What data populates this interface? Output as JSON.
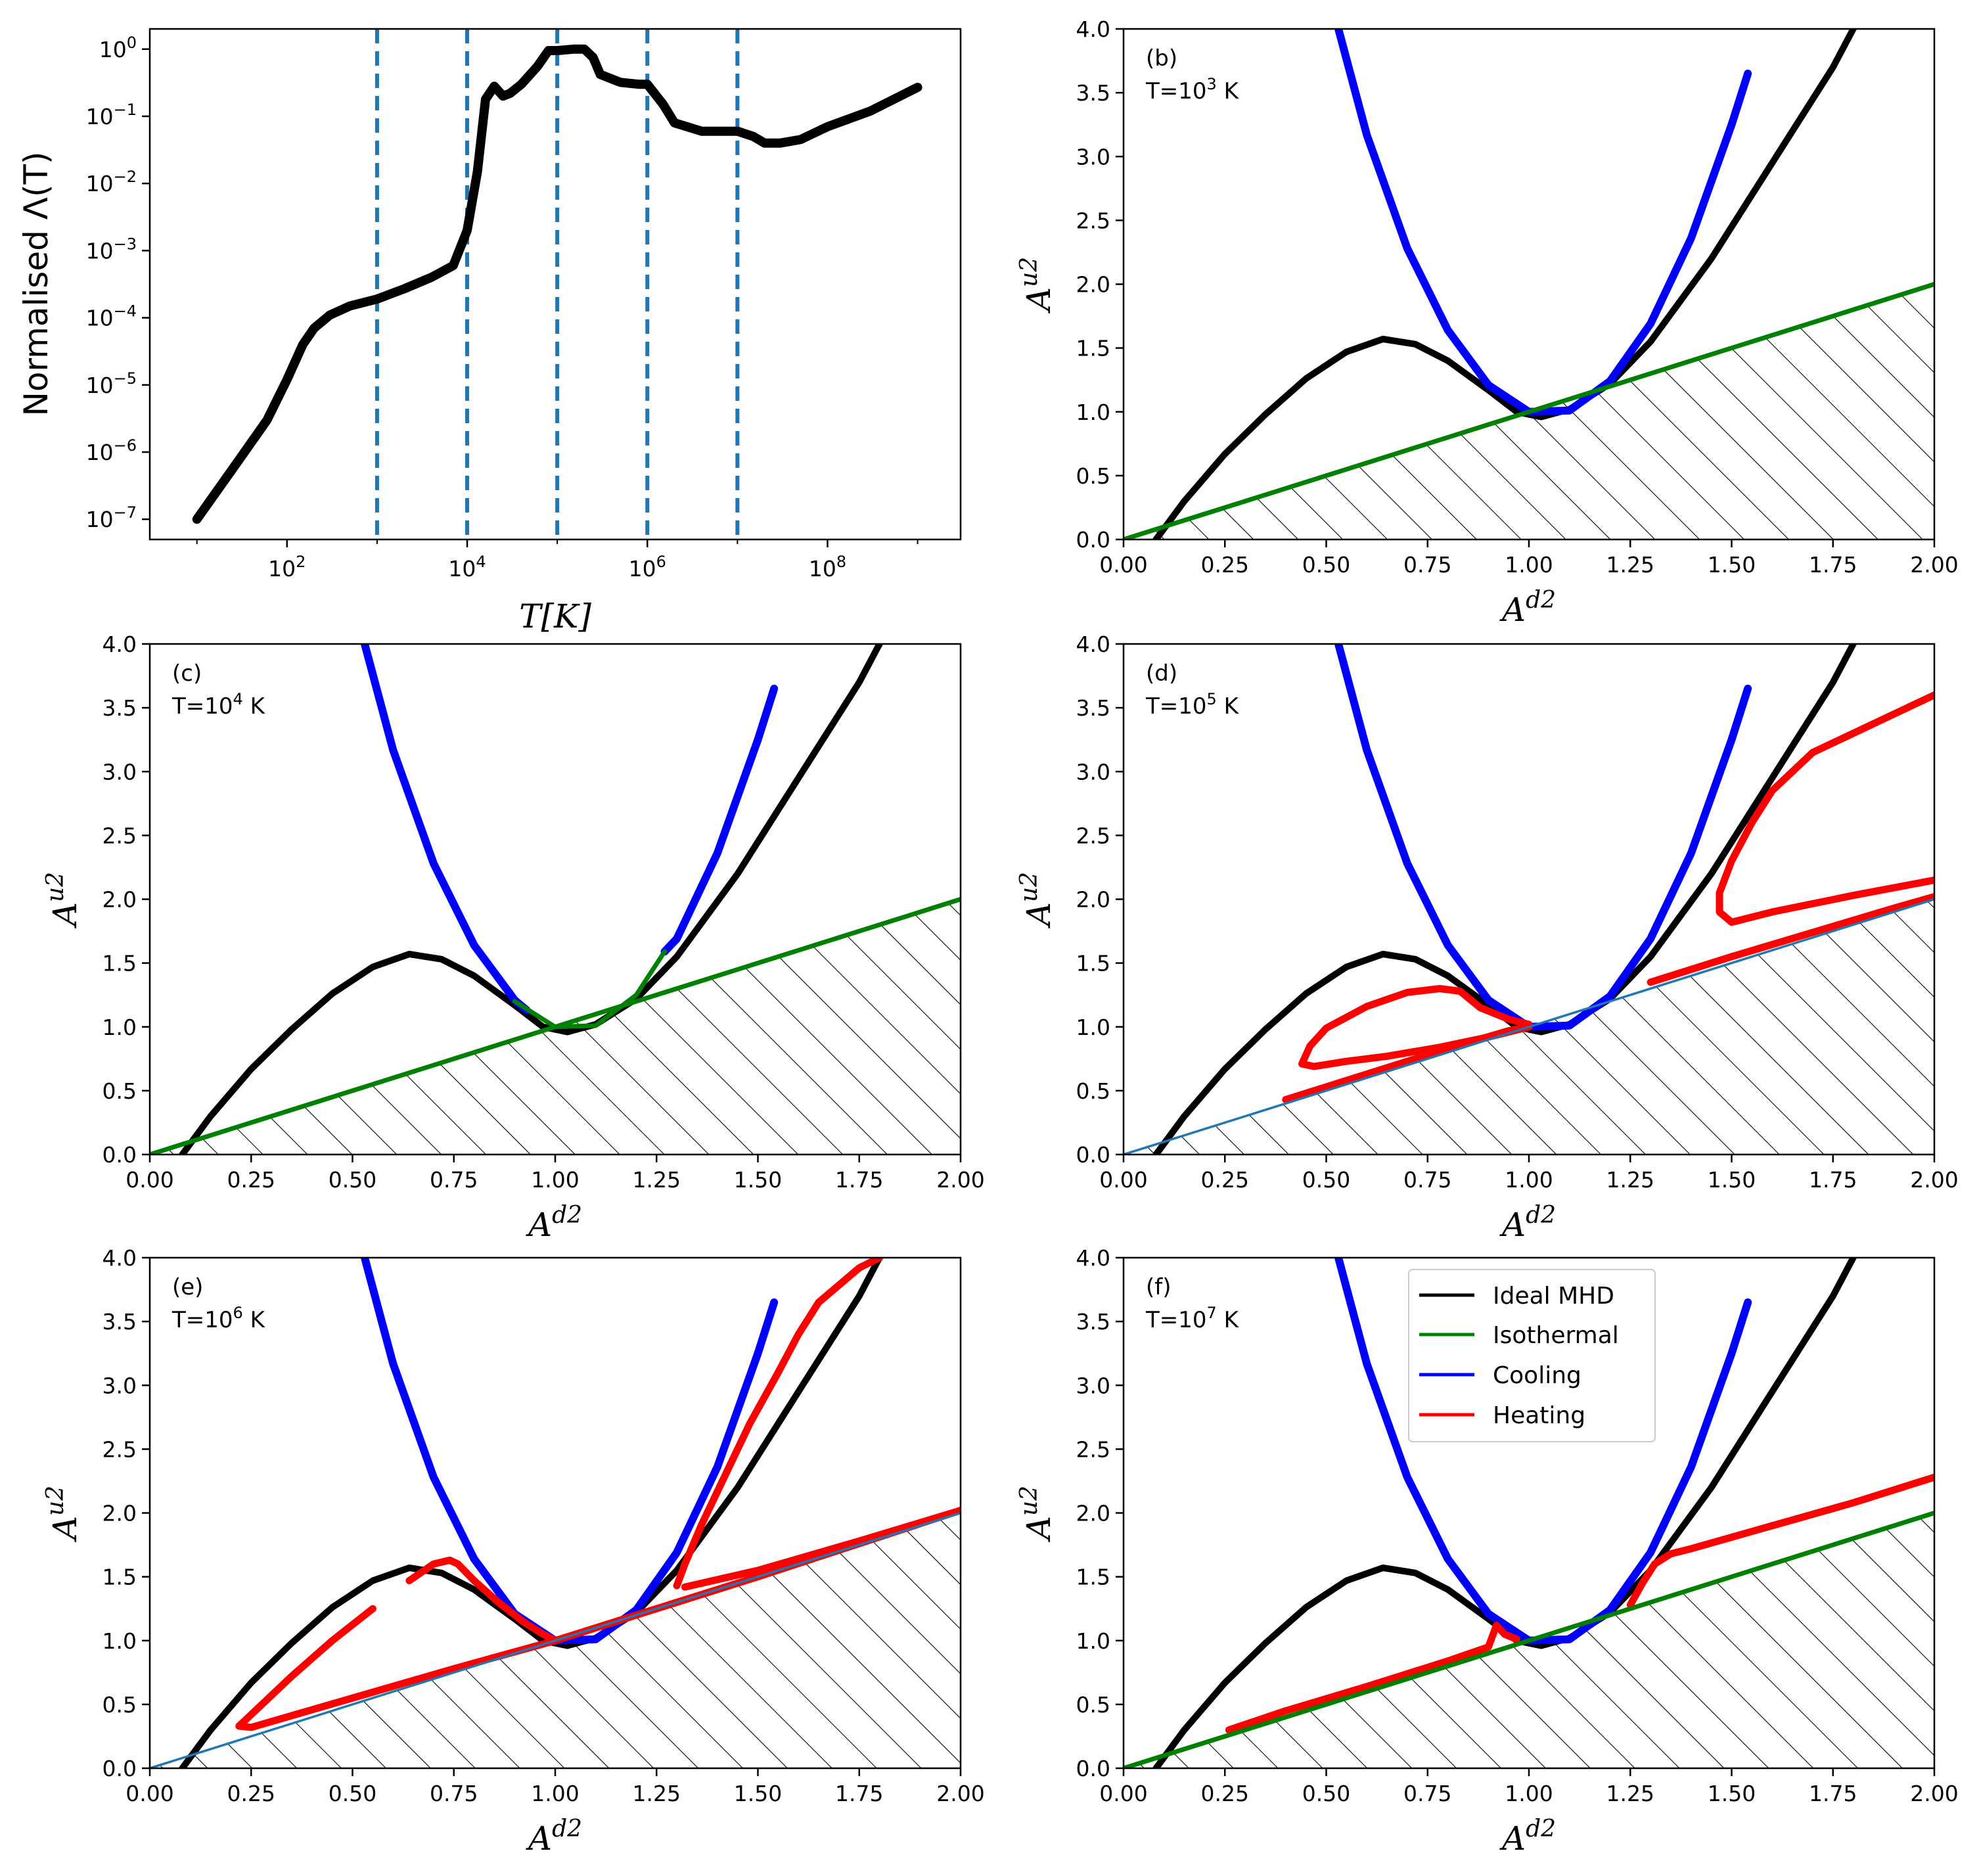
{
  "colors": {
    "ideal": "#000000",
    "isothermal": "#008000",
    "cooling": "#0000ff",
    "heating": "#ff0000",
    "reference": "#1f77b4",
    "vline": "#1f77b4"
  },
  "chart_data": [
    {
      "id": "a",
      "type": "line",
      "x_scale": "log",
      "y_scale": "log",
      "xlabel": "T[K]",
      "ylabel": "Normalised Λ(T)",
      "xlim": [
        3,
        3000000000
      ],
      "ylim": [
        5e-08,
        2
      ],
      "x_ticks": [
        {
          "v": 100,
          "label": "10^2"
        },
        {
          "v": 10000,
          "label": "10^4"
        },
        {
          "v": 1000000,
          "label": "10^6"
        },
        {
          "v": 100000000,
          "label": "10^8"
        }
      ],
      "y_ticks": [
        {
          "v": 1e-07,
          "label": "10^-7"
        },
        {
          "v": 1e-06,
          "label": "10^-6"
        },
        {
          "v": 1e-05,
          "label": "10^-5"
        },
        {
          "v": 0.0001,
          "label": "10^-4"
        },
        {
          "v": 0.001,
          "label": "10^-3"
        },
        {
          "v": 0.01,
          "label": "10^-2"
        },
        {
          "v": 0.1,
          "label": "10^-1"
        },
        {
          "v": 1,
          "label": "10^0"
        }
      ],
      "vlines": [
        1000,
        10000,
        100000,
        1000000,
        10000000
      ],
      "series": [
        {
          "role": "ideal",
          "x": [
            10,
            30,
            60,
            100,
            150,
            200,
            300,
            500,
            1000,
            2000,
            4000,
            7000,
            10000,
            13000,
            16000,
            20000,
            25000,
            30000,
            40000,
            60000,
            80000,
            100000,
            150000,
            200000,
            250000,
            300000,
            500000,
            800000,
            1000000,
            1500000,
            2000000,
            4000000,
            10000000,
            15000000,
            20000000,
            30000000,
            50000000,
            100000000,
            300000000,
            1000000000
          ],
          "y": [
            1e-07,
            8e-07,
            3e-06,
            1.2e-05,
            4e-05,
            7e-05,
            0.00011,
            0.00015,
            0.00019,
            0.00027,
            0.0004,
            0.0006,
            0.002,
            0.015,
            0.18,
            0.28,
            0.2,
            0.22,
            0.3,
            0.55,
            0.95,
            0.95,
            1.0,
            1.0,
            0.75,
            0.42,
            0.32,
            0.3,
            0.3,
            0.15,
            0.08,
            0.06,
            0.06,
            0.05,
            0.04,
            0.04,
            0.045,
            0.07,
            0.12,
            0.27
          ]
        }
      ]
    },
    {
      "id": "b",
      "type": "line",
      "panel_label": "(b)",
      "temperature": "T=10^3 K",
      "xlabel": "A^d2",
      "ylabel": "A^u2",
      "xlim": [
        0,
        2
      ],
      "ylim": [
        0,
        4
      ],
      "x_ticks": [
        "0.00",
        "0.25",
        "0.50",
        "0.75",
        "1.00",
        "1.25",
        "1.50",
        "1.75",
        "2.00"
      ],
      "y_ticks": [
        "0.0",
        "0.5",
        "1.0",
        "1.5",
        "2.0",
        "2.5",
        "3.0",
        "3.5",
        "4.0"
      ],
      "series": [
        {
          "role": "ideal",
          "x": [
            0.08,
            0.15,
            0.25,
            0.35,
            0.45,
            0.55,
            0.64,
            0.72,
            0.8,
            0.9,
            0.97,
            1.03,
            1.1,
            1.2,
            1.3,
            1.45,
            1.6,
            1.75,
            1.8
          ],
          "y": [
            0.0,
            0.3,
            0.67,
            0.98,
            1.26,
            1.47,
            1.57,
            1.53,
            1.4,
            1.17,
            1.0,
            0.96,
            1.02,
            1.22,
            1.55,
            2.2,
            2.95,
            3.7,
            4.0
          ]
        },
        {
          "role": "cooling",
          "x": [
            0.53,
            0.6,
            0.7,
            0.8,
            0.9,
            1.0,
            1.1,
            1.2,
            1.3,
            1.4,
            1.5,
            1.54
          ],
          "y": [
            4.0,
            3.17,
            2.28,
            1.64,
            1.21,
            1.0,
            1.01,
            1.24,
            1.69,
            2.36,
            3.25,
            3.65
          ]
        },
        {
          "role": "isothermal",
          "x": [
            0,
            2
          ],
          "y": [
            0,
            2
          ]
        }
      ]
    },
    {
      "id": "c",
      "type": "line",
      "panel_label": "(c)",
      "temperature": "T=10^4 K",
      "xlabel": "A^d2",
      "ylabel": "A^u2",
      "xlim": [
        0,
        2
      ],
      "ylim": [
        0,
        4
      ],
      "x_ticks": [
        "0.00",
        "0.25",
        "0.50",
        "0.75",
        "1.00",
        "1.25",
        "1.50",
        "1.75",
        "2.00"
      ],
      "y_ticks": [
        "0.0",
        "0.5",
        "1.0",
        "1.5",
        "2.0",
        "2.5",
        "3.0",
        "3.5",
        "4.0"
      ],
      "series": [
        {
          "role": "ideal",
          "x": [
            0.08,
            0.15,
            0.25,
            0.35,
            0.45,
            0.55,
            0.64,
            0.72,
            0.8,
            0.9,
            0.97,
            1.03,
            1.1,
            1.2,
            1.3,
            1.45,
            1.6,
            1.75,
            1.8
          ],
          "y": [
            0.0,
            0.3,
            0.67,
            0.98,
            1.26,
            1.47,
            1.57,
            1.53,
            1.4,
            1.17,
            1.0,
            0.96,
            1.02,
            1.22,
            1.55,
            2.2,
            2.95,
            3.7,
            4.0
          ]
        },
        {
          "role": "cooling",
          "x": [
            0.53,
            0.6,
            0.7,
            0.8,
            0.9,
            0.93
          ],
          "y": [
            4.0,
            3.17,
            2.28,
            1.64,
            1.21,
            1.13
          ]
        },
        {
          "role": "cooling",
          "x": [
            1.27,
            1.3,
            1.4,
            1.5,
            1.54
          ],
          "y": [
            1.59,
            1.69,
            2.36,
            3.25,
            3.65
          ]
        },
        {
          "role": "isothermal",
          "x": [
            0.9,
            0.95,
            1.0,
            1.1,
            1.2,
            1.27
          ],
          "y": [
            1.2,
            1.1,
            1.0,
            1.01,
            1.25,
            1.59
          ]
        },
        {
          "role": "isothermal",
          "x": [
            0,
            2
          ],
          "y": [
            0,
            2
          ]
        }
      ]
    },
    {
      "id": "d",
      "type": "line",
      "panel_label": "(d)",
      "temperature": "T=10^5 K",
      "xlabel": "A^d2",
      "ylabel": "A^u2",
      "xlim": [
        0,
        2
      ],
      "ylim": [
        0,
        4
      ],
      "x_ticks": [
        "0.00",
        "0.25",
        "0.50",
        "0.75",
        "1.00",
        "1.25",
        "1.50",
        "1.75",
        "2.00"
      ],
      "y_ticks": [
        "0.0",
        "0.5",
        "1.0",
        "1.5",
        "2.0",
        "2.5",
        "3.0",
        "3.5",
        "4.0"
      ],
      "series": [
        {
          "role": "ideal",
          "x": [
            0.08,
            0.15,
            0.25,
            0.35,
            0.45,
            0.55,
            0.64,
            0.72,
            0.8,
            0.9,
            0.97,
            1.03,
            1.1,
            1.2,
            1.3,
            1.45,
            1.6,
            1.75,
            1.8
          ],
          "y": [
            0.0,
            0.3,
            0.67,
            0.98,
            1.26,
            1.47,
            1.57,
            1.53,
            1.4,
            1.17,
            1.0,
            0.96,
            1.02,
            1.22,
            1.55,
            2.2,
            2.95,
            3.7,
            4.0
          ]
        },
        {
          "role": "cooling",
          "x": [
            0.53,
            0.6,
            0.7,
            0.8,
            0.9,
            1.0,
            1.1,
            1.2,
            1.3,
            1.4,
            1.5,
            1.54
          ],
          "y": [
            4.0,
            3.17,
            2.28,
            1.64,
            1.21,
            1.0,
            1.01,
            1.24,
            1.69,
            2.36,
            3.25,
            3.65
          ]
        },
        {
          "role": "reference",
          "x": [
            0,
            2
          ],
          "y": [
            0,
            2
          ]
        },
        {
          "role": "heating",
          "x": [
            0.4,
            0.6,
            0.8,
            0.95,
            1.0
          ],
          "y": [
            0.43,
            0.63,
            0.83,
            0.97,
            1.0
          ]
        },
        {
          "role": "heating",
          "x": [
            1.0,
            0.95,
            0.88,
            0.83,
            0.78,
            0.7,
            0.6,
            0.5,
            0.46,
            0.44,
            0.47,
            0.55,
            0.65,
            0.78,
            0.9,
            1.0
          ],
          "y": [
            1.02,
            1.06,
            1.15,
            1.28,
            1.3,
            1.27,
            1.16,
            0.99,
            0.85,
            0.71,
            0.69,
            0.73,
            0.77,
            0.84,
            0.92,
            1.0
          ]
        },
        {
          "role": "heating",
          "x": [
            1.3,
            1.5,
            1.7,
            1.9,
            2.0
          ],
          "y": [
            1.35,
            1.55,
            1.74,
            1.93,
            2.02
          ]
        },
        {
          "role": "heating",
          "x": [
            2.0,
            1.8,
            1.6,
            1.5,
            1.47,
            1.47,
            1.5,
            1.55,
            1.6,
            1.7,
            1.8,
            1.9,
            2.0
          ],
          "y": [
            2.15,
            2.03,
            1.9,
            1.82,
            1.9,
            2.05,
            2.3,
            2.6,
            2.85,
            3.15,
            3.3,
            3.45,
            3.6
          ]
        }
      ]
    },
    {
      "id": "e",
      "type": "line",
      "panel_label": "(e)",
      "temperature": "T=10^6 K",
      "xlabel": "A^d2",
      "ylabel": "A^u2",
      "xlim": [
        0,
        2
      ],
      "ylim": [
        0,
        4
      ],
      "x_ticks": [
        "0.00",
        "0.25",
        "0.50",
        "0.75",
        "1.00",
        "1.25",
        "1.50",
        "1.75",
        "2.00"
      ],
      "y_ticks": [
        "0.0",
        "0.5",
        "1.0",
        "1.5",
        "2.0",
        "2.5",
        "3.0",
        "3.5",
        "4.0"
      ],
      "series": [
        {
          "role": "ideal",
          "x": [
            0.08,
            0.15,
            0.25,
            0.35,
            0.45,
            0.55,
            0.64,
            0.72,
            0.8,
            0.9,
            0.97,
            1.03,
            1.1,
            1.2,
            1.3,
            1.45,
            1.6,
            1.75,
            1.8
          ],
          "y": [
            0.0,
            0.3,
            0.67,
            0.98,
            1.26,
            1.47,
            1.57,
            1.53,
            1.4,
            1.17,
            1.0,
            0.96,
            1.02,
            1.22,
            1.55,
            2.2,
            2.95,
            3.7,
            4.0
          ]
        },
        {
          "role": "cooling",
          "x": [
            0.53,
            0.6,
            0.7,
            0.8,
            0.9,
            1.0,
            1.1,
            1.2,
            1.3,
            1.4,
            1.5,
            1.54
          ],
          "y": [
            4.0,
            3.17,
            2.28,
            1.64,
            1.21,
            1.0,
            1.01,
            1.24,
            1.69,
            2.36,
            3.25,
            3.65
          ]
        },
        {
          "role": "reference",
          "x": [
            0,
            2
          ],
          "y": [
            0,
            2
          ]
        },
        {
          "role": "heating",
          "x": [
            0.55,
            0.45,
            0.35,
            0.27,
            0.22,
            0.25,
            0.5,
            0.75,
            1.0,
            1.5,
            2.0
          ],
          "y": [
            1.25,
            1.0,
            0.72,
            0.48,
            0.33,
            0.32,
            0.55,
            0.78,
            1.0,
            1.5,
            2.02
          ]
        },
        {
          "role": "heating",
          "x": [
            0.64,
            0.7,
            0.74,
            0.76,
            0.8,
            0.86,
            0.92,
            0.97,
            1.0
          ],
          "y": [
            1.47,
            1.6,
            1.63,
            1.6,
            1.47,
            1.3,
            1.15,
            1.05,
            1.0
          ]
        },
        {
          "role": "heating",
          "x": [
            1.3,
            1.32,
            1.36,
            1.42,
            1.48,
            1.55,
            1.6,
            1.65,
            1.75,
            1.8
          ],
          "y": [
            1.43,
            1.6,
            1.9,
            2.3,
            2.7,
            3.1,
            3.4,
            3.65,
            3.92,
            4.0
          ]
        },
        {
          "role": "heating",
          "x": [
            1.32,
            1.5,
            1.75,
            2.0
          ],
          "y": [
            1.42,
            1.55,
            1.78,
            2.02
          ]
        }
      ]
    },
    {
      "id": "f",
      "type": "line",
      "panel_label": "(f)",
      "temperature": "T=10^7 K",
      "xlabel": "A^d2",
      "ylabel": "A^u2",
      "xlim": [
        0,
        2
      ],
      "ylim": [
        0,
        4
      ],
      "x_ticks": [
        "0.00",
        "0.25",
        "0.50",
        "0.75",
        "1.00",
        "1.25",
        "1.50",
        "1.75",
        "2.00"
      ],
      "y_ticks": [
        "0.0",
        "0.5",
        "1.0",
        "1.5",
        "2.0",
        "2.5",
        "3.0",
        "3.5",
        "4.0"
      ],
      "legend": {
        "placement": "top-center",
        "entries": [
          {
            "label": "Ideal MHD",
            "role": "ideal"
          },
          {
            "label": "Isothermal",
            "role": "isothermal"
          },
          {
            "label": "Cooling",
            "role": "cooling"
          },
          {
            "label": "Heating",
            "role": "heating"
          }
        ]
      },
      "series": [
        {
          "role": "ideal",
          "x": [
            0.08,
            0.15,
            0.25,
            0.35,
            0.45,
            0.55,
            0.64,
            0.72,
            0.8,
            0.9,
            0.97,
            1.03,
            1.1,
            1.2,
            1.3,
            1.45,
            1.6,
            1.75,
            1.8
          ],
          "y": [
            0.0,
            0.3,
            0.67,
            0.98,
            1.26,
            1.47,
            1.57,
            1.53,
            1.4,
            1.17,
            1.0,
            0.96,
            1.02,
            1.22,
            1.55,
            2.2,
            2.95,
            3.7,
            4.0
          ]
        },
        {
          "role": "cooling",
          "x": [
            0.53,
            0.6,
            0.7,
            0.8,
            0.9,
            1.0,
            1.1,
            1.2,
            1.3,
            1.4,
            1.5,
            1.54
          ],
          "y": [
            4.0,
            3.17,
            2.28,
            1.64,
            1.21,
            1.0,
            1.01,
            1.24,
            1.69,
            2.36,
            3.25,
            3.65
          ]
        },
        {
          "role": "isothermal",
          "x": [
            0,
            2
          ],
          "y": [
            0,
            2
          ]
        },
        {
          "role": "heating",
          "x": [
            0.26,
            0.4,
            0.6,
            0.8,
            0.9,
            0.92,
            0.94,
            0.97
          ],
          "y": [
            0.3,
            0.45,
            0.64,
            0.84,
            0.95,
            1.12,
            1.05,
            1.01
          ]
        },
        {
          "role": "heating",
          "x": [
            1.25,
            1.28,
            1.31,
            1.35,
            1.4,
            1.6,
            1.8,
            2.0
          ],
          "y": [
            1.28,
            1.45,
            1.6,
            1.68,
            1.72,
            1.9,
            2.08,
            2.28
          ]
        }
      ]
    }
  ]
}
